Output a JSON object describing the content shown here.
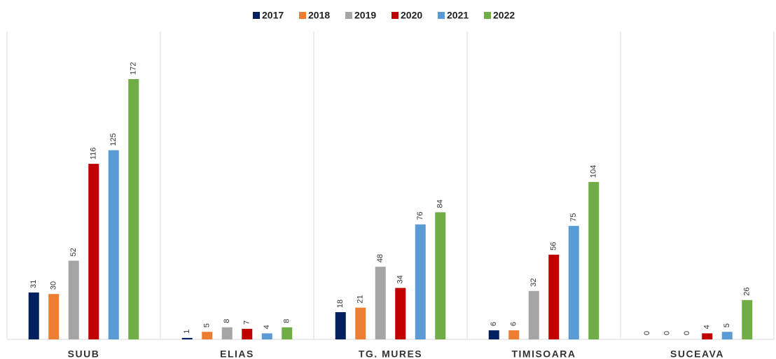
{
  "chart_data": {
    "type": "bar",
    "categories": [
      "SUUB",
      "ELIAS",
      "TG. MURES",
      "TIMISOARA",
      "SUCEAVA"
    ],
    "series": [
      {
        "name": "2017",
        "color": "#002060",
        "values": [
          31,
          1,
          18,
          6,
          0
        ]
      },
      {
        "name": "2018",
        "color": "#ED7D31",
        "values": [
          30,
          5,
          21,
          6,
          0
        ]
      },
      {
        "name": "2019",
        "color": "#A5A5A5",
        "values": [
          52,
          8,
          48,
          32,
          0
        ]
      },
      {
        "name": "2020",
        "color": "#C00000",
        "values": [
          116,
          7,
          34,
          56,
          4
        ]
      },
      {
        "name": "2021",
        "color": "#5B9BD5",
        "values": [
          125,
          4,
          76,
          75,
          5
        ]
      },
      {
        "name": "2022",
        "color": "#70AD47",
        "values": [
          172,
          8,
          84,
          104,
          26
        ]
      }
    ],
    "legend": "top"
  }
}
